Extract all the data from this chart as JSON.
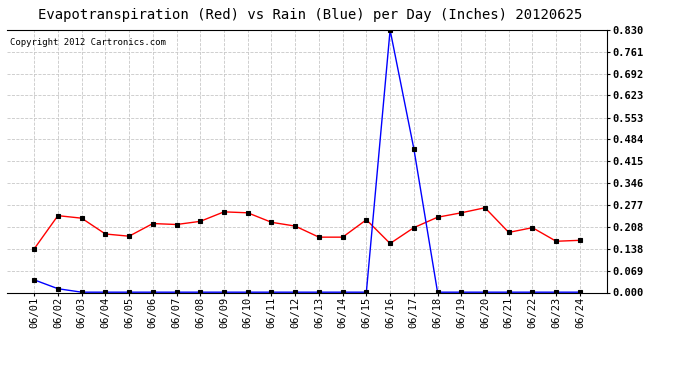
{
  "title": "Evapotranspiration (Red) vs Rain (Blue) per Day (Inches) 20120625",
  "copyright": "Copyright 2012 Cartronics.com",
  "x_labels": [
    "06/01",
    "06/02",
    "06/03",
    "06/04",
    "06/05",
    "06/06",
    "06/07",
    "06/08",
    "06/09",
    "06/10",
    "06/11",
    "06/12",
    "06/13",
    "06/14",
    "06/15",
    "06/16",
    "06/17",
    "06/18",
    "06/19",
    "06/20",
    "06/21",
    "06/22",
    "06/23",
    "06/24"
  ],
  "et_values": [
    0.138,
    0.243,
    0.235,
    0.185,
    0.178,
    0.218,
    0.215,
    0.225,
    0.255,
    0.252,
    0.222,
    0.21,
    0.175,
    0.175,
    0.23,
    0.155,
    0.205,
    0.238,
    0.252,
    0.268,
    0.19,
    0.205,
    0.162,
    0.165
  ],
  "rain_values": [
    0.04,
    0.012,
    0.001,
    0.001,
    0.001,
    0.001,
    0.001,
    0.001,
    0.001,
    0.001,
    0.001,
    0.001,
    0.001,
    0.001,
    0.001,
    0.83,
    0.455,
    0.001,
    0.001,
    0.001,
    0.001,
    0.001,
    0.001,
    0.001
  ],
  "et_color": "red",
  "rain_color": "blue",
  "y_ticks": [
    0.0,
    0.069,
    0.138,
    0.208,
    0.277,
    0.346,
    0.415,
    0.484,
    0.553,
    0.623,
    0.692,
    0.761,
    0.83
  ],
  "ylim": [
    0.0,
    0.83
  ],
  "bg_color": "#ffffff",
  "plot_bg_color": "#ffffff",
  "grid_color": "#c8c8c8",
  "title_fontsize": 10,
  "copyright_fontsize": 6.5,
  "tick_fontsize": 7.5,
  "ytick_fontsize": 7.5
}
